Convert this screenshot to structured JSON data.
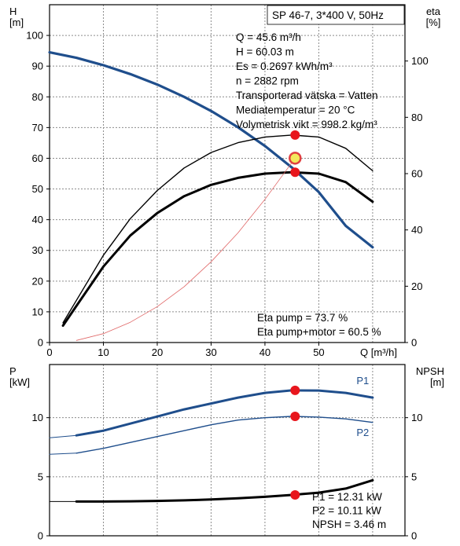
{
  "chart_data": [
    {
      "type": "line",
      "panel": "top",
      "title": "SP 46-7, 3*400 V, 50Hz",
      "xlabel": "Q [m³/h]",
      "ylabel_left": [
        "H",
        "[m]"
      ],
      "ylabel_right": [
        "eta",
        "[%]"
      ],
      "xlim": [
        0,
        66
      ],
      "ylim_left": [
        0,
        110
      ],
      "ylim_right": [
        0,
        120
      ],
      "x_ticks": [
        0,
        10,
        20,
        30,
        40,
        50
      ],
      "y_ticks_left": [
        0,
        10,
        20,
        30,
        40,
        50,
        60,
        70,
        80,
        90,
        100
      ],
      "y_ticks_right": [
        0,
        20,
        40,
        60,
        80,
        100
      ],
      "grid": true,
      "info_lines": [
        "Q = 45.6 m³/h",
        "H = 60.03 m",
        "Es = 0.2697 kWh/m³",
        "n = 2882 rpm",
        "Transporterad vätska = Vatten",
        "Mediatemperatur = 20 °C",
        "Volymetrisk vikt = 998.2 kg/m³"
      ],
      "eta_lines": [
        "Eta pump = 73.7 %",
        "Eta pump+motor = 60.5 %"
      ],
      "series": [
        {
          "key": "H",
          "axis": "left",
          "color": "#1f4e8c",
          "width": 3.2,
          "x": [
            0,
            5,
            10,
            15,
            20,
            25,
            30,
            35,
            40,
            45,
            50,
            55,
            60
          ],
          "y": [
            94.5,
            92.7,
            90.3,
            87.4,
            84.0,
            80.0,
            75.4,
            70.1,
            64.0,
            57.0,
            49.0,
            38.0,
            31.0
          ]
        },
        {
          "key": "H_ext",
          "axis": "left",
          "color": "#1f4e8c",
          "width": 1,
          "x": [
            0,
            5
          ],
          "y": [
            94.5,
            92.7
          ]
        },
        {
          "key": "eta_pump",
          "axis": "right",
          "color": "#000000",
          "width": 1.4,
          "x": [
            2.5,
            5,
            10,
            15,
            20,
            25,
            30,
            35,
            40,
            45,
            50,
            55,
            60
          ],
          "y": [
            7,
            15,
            31,
            44,
            54,
            62,
            67.5,
            71,
            73,
            73.7,
            73,
            69,
            61
          ]
        },
        {
          "key": "eta_total",
          "axis": "right",
          "color": "#000000",
          "width": 3,
          "x": [
            2.5,
            5,
            10,
            15,
            20,
            25,
            30,
            35,
            40,
            45,
            50,
            55,
            60
          ],
          "y": [
            6,
            13,
            27,
            38,
            46,
            52,
            56,
            58.5,
            60,
            60.5,
            60,
            57,
            50
          ]
        },
        {
          "key": "duty",
          "axis": "left",
          "color": "#e06666",
          "width": 0.8,
          "x": [
            5,
            10,
            15,
            20,
            25,
            30,
            35,
            40,
            45.6
          ],
          "y": [
            0.7,
            2.9,
            6.6,
            11.7,
            18.2,
            26.3,
            35.7,
            46.6,
            60.03
          ]
        }
      ],
      "markers": [
        {
          "axis": "left",
          "x": 45.6,
          "y": 60.03,
          "style": "duty"
        },
        {
          "axis": "right",
          "x": 45.6,
          "y": 73.7,
          "style": "dot"
        },
        {
          "axis": "right",
          "x": 45.6,
          "y": 60.5,
          "style": "dot"
        }
      ]
    },
    {
      "type": "line",
      "panel": "bottom",
      "xlabel": "",
      "ylabel_left": [
        "P",
        "[kW]"
      ],
      "ylabel_right": [
        "NPSH",
        "[m]"
      ],
      "xlim": [
        0,
        66
      ],
      "ylim_left": [
        0,
        14.5
      ],
      "ylim_right": [
        0,
        14.5
      ],
      "y_ticks_left": [
        0,
        5,
        10
      ],
      "y_ticks_right": [
        0,
        5,
        10
      ],
      "grid": true,
      "info_lines": [
        "P1 = 12.31 kW",
        "P2 = 10.11 kW",
        "NPSH = 3.46 m"
      ],
      "series": [
        {
          "key": "P1",
          "name": "P1",
          "axis": "left",
          "color": "#1f4e8c",
          "width": 3,
          "x": [
            5,
            10,
            15,
            20,
            25,
            30,
            35,
            40,
            45,
            50,
            55,
            60
          ],
          "y": [
            8.5,
            8.9,
            9.5,
            10.1,
            10.7,
            11.2,
            11.7,
            12.1,
            12.31,
            12.3,
            12.1,
            11.7
          ],
          "label_at": [
            57,
            13.1
          ]
        },
        {
          "key": "P2",
          "name": "P2",
          "axis": "left",
          "color": "#1f4e8c",
          "width": 1.4,
          "x": [
            5,
            10,
            15,
            20,
            25,
            30,
            35,
            40,
            45,
            50,
            55,
            60
          ],
          "y": [
            7.0,
            7.4,
            7.9,
            8.4,
            8.9,
            9.4,
            9.8,
            10.0,
            10.11,
            10.05,
            9.9,
            9.6
          ],
          "label_at": [
            57,
            8.7
          ]
        },
        {
          "key": "NPSH",
          "axis": "right",
          "color": "#000000",
          "width": 3,
          "x": [
            5,
            10,
            15,
            20,
            25,
            30,
            35,
            40,
            45,
            50,
            55,
            60
          ],
          "y": [
            2.9,
            2.9,
            2.92,
            2.95,
            3.0,
            3.07,
            3.17,
            3.3,
            3.46,
            3.65,
            4.0,
            4.7
          ]
        },
        {
          "key": "P1_ext",
          "axis": "left",
          "color": "#1f4e8c",
          "width": 1,
          "x": [
            0,
            5
          ],
          "y": [
            8.3,
            8.5
          ]
        },
        {
          "key": "P2_ext",
          "axis": "left",
          "color": "#1f4e8c",
          "width": 1,
          "x": [
            0,
            5
          ],
          "y": [
            6.9,
            7.0
          ]
        },
        {
          "key": "NPSH_ext",
          "axis": "right",
          "color": "#000000",
          "width": 1,
          "x": [
            0,
            5
          ],
          "y": [
            2.9,
            2.9
          ]
        }
      ],
      "markers": [
        {
          "axis": "left",
          "x": 45.6,
          "y": 12.31,
          "style": "dot"
        },
        {
          "axis": "left",
          "x": 45.6,
          "y": 10.11,
          "style": "dot"
        },
        {
          "axis": "right",
          "x": 45.6,
          "y": 3.46,
          "style": "dot"
        }
      ]
    }
  ]
}
